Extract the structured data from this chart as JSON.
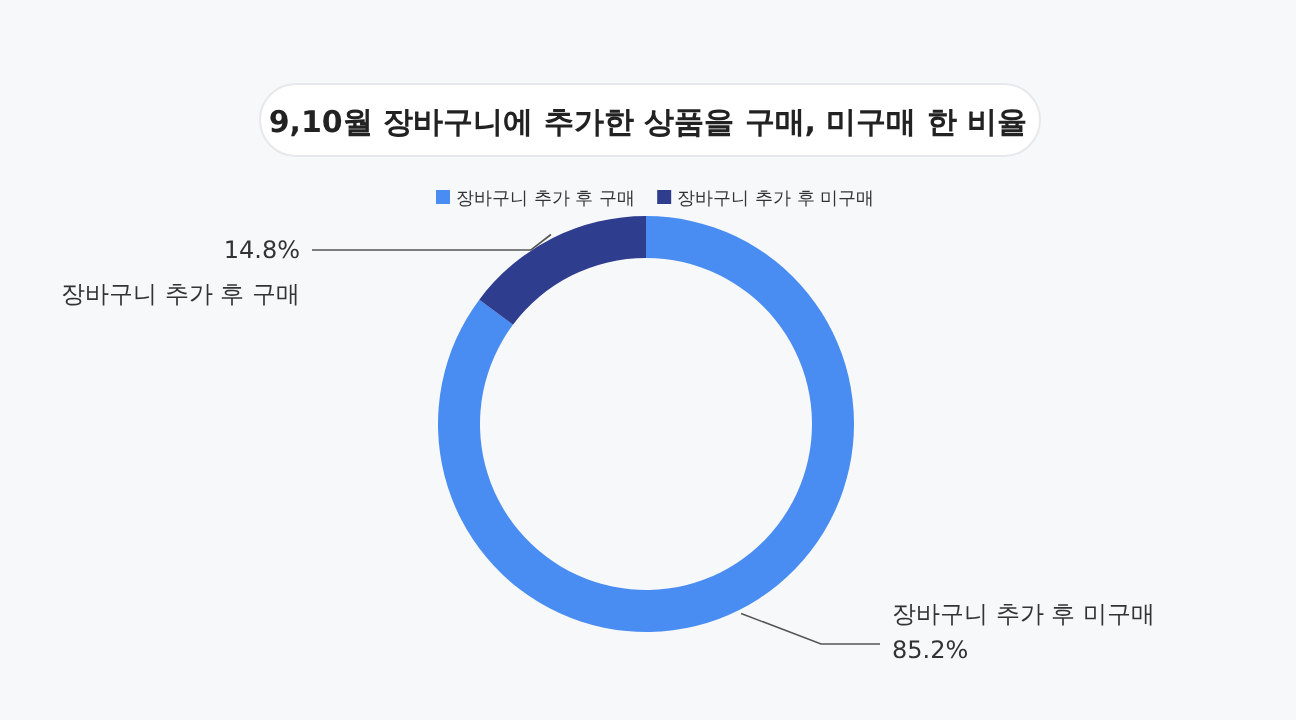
{
  "chart_data": {
    "type": "donut",
    "title": "9,10월 장바구니에 추가한 상품을 구매, 미구매 한 비율",
    "categories": [
      "장바구니 추가 후 구매",
      "장바구니 추가 후 미구매"
    ],
    "values": [
      85.2,
      14.8
    ],
    "colors": [
      "#4a8df2",
      "#2f3d8f"
    ],
    "value_labels": [
      "85.2%",
      "14.8%"
    ],
    "annotations": [
      "장바구니 추가 후 미구매",
      "장바구니 추가 후 구매"
    ],
    "legend": "top"
  }
}
